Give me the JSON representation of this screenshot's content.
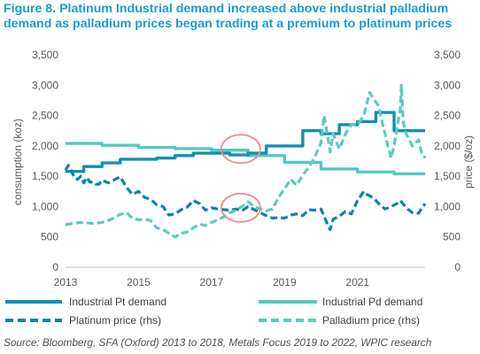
{
  "title": "Figure 8. Platinum Industrial demand increased above industrial palladium demand as palladium prices began trading at a premium to platinum prices",
  "source": "Source: Bloomberg, SFA (Oxford) 2013 to 2018, Metals Focus 2019 to 2022, WPIC research",
  "colors": {
    "pt_demand": "#138fb3",
    "pd_demand": "#52c9c0",
    "pt_price": "#1083a8",
    "pd_price": "#5ccabf",
    "highlight_circle": "#f08a8a",
    "axis": "#bfbfbf"
  },
  "chart_data": {
    "type": "line",
    "title": "Figure 8. Platinum Industrial demand increased above industrial palladium demand as palladium prices began trading at a premium to platinum prices",
    "ylabel": "consumption (koz)",
    "y2label": "price ($/oz)",
    "xlim": [
      2013,
      2022.85
    ],
    "ylim": [
      0,
      3500
    ],
    "y2lim": [
      0,
      3500
    ],
    "x_ticks": [
      "2013",
      "2015",
      "2017",
      "2019",
      "2021"
    ],
    "y_ticks": [
      "0",
      "500",
      "1,000",
      "1,500",
      "2,000",
      "2,500",
      "3,000",
      "3,500"
    ],
    "y2_ticks": [
      "0",
      "500",
      "1,000",
      "1,500",
      "2,000",
      "2,500",
      "3,000",
      "3,500"
    ],
    "grid": false,
    "legend_position": "bottom",
    "highlights": [
      {
        "x": 2017.8,
        "y": 1950
      },
      {
        "x": 2017.8,
        "y": 980
      }
    ],
    "series": [
      {
        "name": "Industrial Pt demand",
        "axis": "left",
        "style": "solid",
        "step": true,
        "points": [
          [
            2013,
            1580
          ],
          [
            2013.5,
            1580
          ],
          [
            2013.5,
            1660
          ],
          [
            2014,
            1660
          ],
          [
            2014,
            1720
          ],
          [
            2014.5,
            1720
          ],
          [
            2014.5,
            1780
          ],
          [
            2015.5,
            1780
          ],
          [
            2015.5,
            1800
          ],
          [
            2016,
            1800
          ],
          [
            2016,
            1840
          ],
          [
            2016.5,
            1840
          ],
          [
            2016.5,
            1880
          ],
          [
            2017.5,
            1880
          ],
          [
            2017.5,
            1850
          ],
          [
            2018,
            1850
          ],
          [
            2018,
            1880
          ],
          [
            2018.5,
            1880
          ],
          [
            2018.5,
            2000
          ],
          [
            2019.5,
            2000
          ],
          [
            2019.5,
            2250
          ],
          [
            2020,
            2250
          ],
          [
            2020,
            2200
          ],
          [
            2020.5,
            2200
          ],
          [
            2020.5,
            2350
          ],
          [
            2021,
            2350
          ],
          [
            2021,
            2400
          ],
          [
            2021.5,
            2400
          ],
          [
            2021.5,
            2550
          ],
          [
            2022,
            2550
          ],
          [
            2022,
            2250
          ],
          [
            2022.85,
            2250
          ]
        ]
      },
      {
        "name": "Industrial Pd demand",
        "axis": "left",
        "style": "solid",
        "step": true,
        "points": [
          [
            2013,
            2040
          ],
          [
            2014,
            2040
          ],
          [
            2014,
            2010
          ],
          [
            2015,
            2010
          ],
          [
            2015,
            1975
          ],
          [
            2016,
            1975
          ],
          [
            2016,
            1955
          ],
          [
            2017,
            1955
          ],
          [
            2017,
            1930
          ],
          [
            2018,
            1930
          ],
          [
            2018,
            1840
          ],
          [
            2019,
            1840
          ],
          [
            2019,
            1730
          ],
          [
            2020,
            1730
          ],
          [
            2020,
            1620
          ],
          [
            2021,
            1620
          ],
          [
            2021,
            1570
          ],
          [
            2022,
            1570
          ],
          [
            2022,
            1540
          ],
          [
            2022.85,
            1540
          ]
        ]
      },
      {
        "name": "Platinum price (rhs)",
        "axis": "right",
        "style": "dashed",
        "points": [
          [
            2013,
            1600
          ],
          [
            2013.08,
            1680
          ],
          [
            2013.17,
            1570
          ],
          [
            2013.25,
            1470
          ],
          [
            2013.33,
            1450
          ],
          [
            2013.42,
            1500
          ],
          [
            2013.5,
            1390
          ],
          [
            2013.58,
            1480
          ],
          [
            2013.67,
            1400
          ],
          [
            2013.75,
            1410
          ],
          [
            2013.83,
            1370
          ],
          [
            2013.92,
            1370
          ],
          [
            2014,
            1440
          ],
          [
            2014.17,
            1390
          ],
          [
            2014.33,
            1440
          ],
          [
            2014.5,
            1490
          ],
          [
            2014.58,
            1410
          ],
          [
            2014.67,
            1320
          ],
          [
            2014.83,
            1200
          ],
          [
            2015,
            1250
          ],
          [
            2015.17,
            1150
          ],
          [
            2015.33,
            1120
          ],
          [
            2015.5,
            1030
          ],
          [
            2015.67,
            1000
          ],
          [
            2015.83,
            860
          ],
          [
            2016,
            880
          ],
          [
            2016.17,
            950
          ],
          [
            2016.33,
            990
          ],
          [
            2016.5,
            1100
          ],
          [
            2016.67,
            1050
          ],
          [
            2016.83,
            940
          ],
          [
            2017,
            980
          ],
          [
            2017.17,
            960
          ],
          [
            2017.33,
            950
          ],
          [
            2017.5,
            940
          ],
          [
            2017.67,
            960
          ],
          [
            2017.83,
            930
          ],
          [
            2018,
            1000
          ],
          [
            2018.17,
            950
          ],
          [
            2018.33,
            900
          ],
          [
            2018.5,
            850
          ],
          [
            2018.67,
            810
          ],
          [
            2018.83,
            820
          ],
          [
            2019,
            810
          ],
          [
            2019.17,
            860
          ],
          [
            2019.33,
            880
          ],
          [
            2019.5,
            850
          ],
          [
            2019.67,
            950
          ],
          [
            2019.83,
            940
          ],
          [
            2020,
            960
          ],
          [
            2020.17,
            720
          ],
          [
            2020.25,
            620
          ],
          [
            2020.33,
            790
          ],
          [
            2020.5,
            840
          ],
          [
            2020.67,
            920
          ],
          [
            2020.83,
            880
          ],
          [
            2021,
            1100
          ],
          [
            2021.17,
            1250
          ],
          [
            2021.25,
            1200
          ],
          [
            2021.42,
            1150
          ],
          [
            2021.58,
            1050
          ],
          [
            2021.75,
            960
          ],
          [
            2021.92,
            1000
          ],
          [
            2022.08,
            1050
          ],
          [
            2022.17,
            1100
          ],
          [
            2022.33,
            980
          ],
          [
            2022.5,
            900
          ],
          [
            2022.67,
            890
          ],
          [
            2022.85,
            1050
          ]
        ]
      },
      {
        "name": "Palladium price (rhs)",
        "axis": "right",
        "style": "dashed",
        "points": [
          [
            2013,
            700
          ],
          [
            2013.25,
            730
          ],
          [
            2013.5,
            740
          ],
          [
            2013.75,
            720
          ],
          [
            2014,
            740
          ],
          [
            2014.25,
            790
          ],
          [
            2014.5,
            870
          ],
          [
            2014.67,
            900
          ],
          [
            2014.83,
            810
          ],
          [
            2015,
            780
          ],
          [
            2015.17,
            790
          ],
          [
            2015.33,
            770
          ],
          [
            2015.5,
            650
          ],
          [
            2015.67,
            620
          ],
          [
            2015.83,
            560
          ],
          [
            2016,
            500
          ],
          [
            2016.17,
            560
          ],
          [
            2016.33,
            580
          ],
          [
            2016.5,
            650
          ],
          [
            2016.67,
            710
          ],
          [
            2016.83,
            690
          ],
          [
            2017,
            740
          ],
          [
            2017.17,
            780
          ],
          [
            2017.33,
            830
          ],
          [
            2017.5,
            900
          ],
          [
            2017.67,
            940
          ],
          [
            2017.83,
            1000
          ],
          [
            2018,
            1080
          ],
          [
            2018.17,
            1000
          ],
          [
            2018.33,
            960
          ],
          [
            2018.5,
            930
          ],
          [
            2018.67,
            960
          ],
          [
            2018.83,
            1150
          ],
          [
            2019,
            1290
          ],
          [
            2019.17,
            1450
          ],
          [
            2019.33,
            1350
          ],
          [
            2019.5,
            1520
          ],
          [
            2019.67,
            1650
          ],
          [
            2019.83,
            1820
          ],
          [
            2020,
            2050
          ],
          [
            2020.08,
            2500
          ],
          [
            2020.17,
            2200
          ],
          [
            2020.25,
            1900
          ],
          [
            2020.33,
            2200
          ],
          [
            2020.5,
            1950
          ],
          [
            2020.67,
            2200
          ],
          [
            2020.83,
            2350
          ],
          [
            2021,
            2350
          ],
          [
            2021.17,
            2500
          ],
          [
            2021.33,
            2880
          ],
          [
            2021.42,
            2800
          ],
          [
            2021.58,
            2650
          ],
          [
            2021.67,
            2400
          ],
          [
            2021.83,
            2000
          ],
          [
            2021.92,
            1800
          ],
          [
            2022,
            2000
          ],
          [
            2022.08,
            2300
          ],
          [
            2022.17,
            2600
          ],
          [
            2022.2,
            3000
          ],
          [
            2022.25,
            2400
          ],
          [
            2022.33,
            2200
          ],
          [
            2022.5,
            2000
          ],
          [
            2022.67,
            2100
          ],
          [
            2022.75,
            1900
          ],
          [
            2022.85,
            1800
          ]
        ]
      }
    ]
  }
}
